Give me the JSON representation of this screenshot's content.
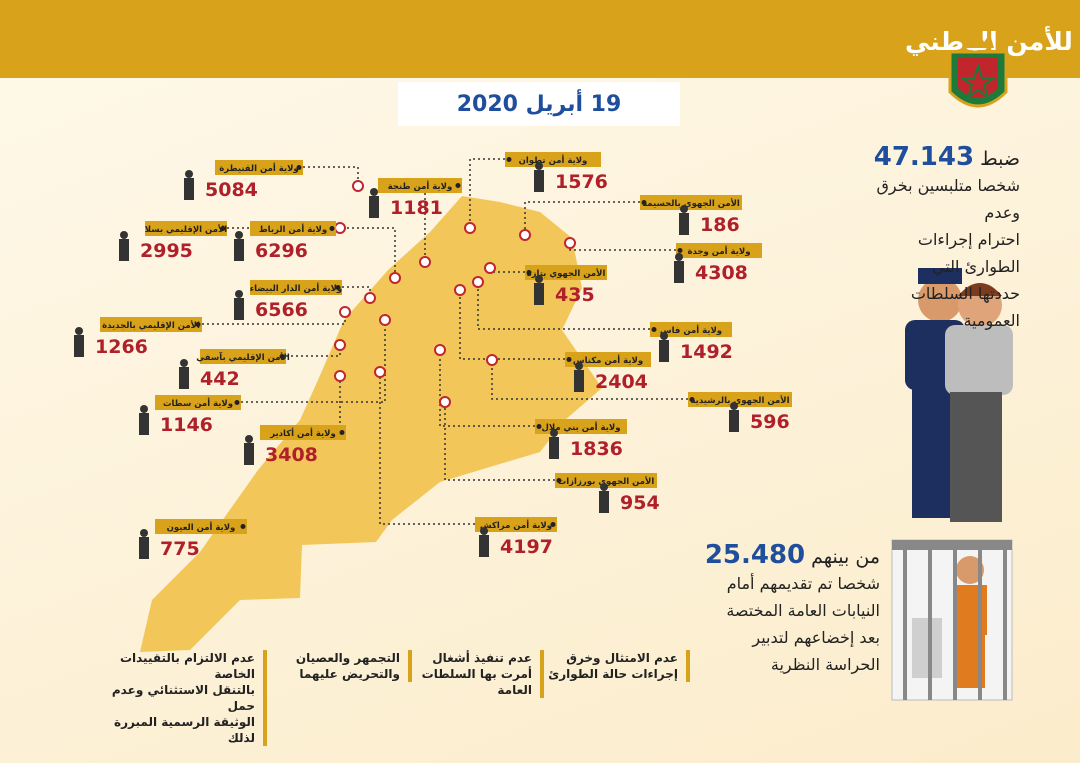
{
  "header": {
    "title": "حصيلة العمليات الأمنية لمختلف مصالح المديرية العامة للأمن الوطني",
    "date": "19 أبريل 2020"
  },
  "regions": [
    {
      "name": "ولاية أمن القنيطرة",
      "value": 5084
    },
    {
      "name": "ولاية أمن طنجة",
      "value": 1181
    },
    {
      "name": "ولاية أمن تطوان",
      "value": 1576
    },
    {
      "name": "الأمن الجهوي بالحسيمة",
      "value": 186
    },
    {
      "name": "الأمن الإقليمي بسلا",
      "value": 2995
    },
    {
      "name": "ولاية أمن الرباط",
      "value": 6296
    },
    {
      "name": "ولاية أمن وجدة",
      "value": 4308
    },
    {
      "name": "الأمن الجهوي بتازة",
      "value": 435
    },
    {
      "name": "ولاية أمن الدار البيضاء",
      "value": 6566
    },
    {
      "name": "الأمن الإقليمي بالجديدة",
      "value": 1266
    },
    {
      "name": "ولاية أمن فاس",
      "value": 1492
    },
    {
      "name": "الأمن الإقليمي بآسفي",
      "value": 442
    },
    {
      "name": "ولاية أمن مكناس",
      "value": 2404
    },
    {
      "name": "ولاية أمن سطات",
      "value": 1146
    },
    {
      "name": "الأمن الجهوي بالرشيدية",
      "value": 596
    },
    {
      "name": "ولاية أمن أكادير",
      "value": 3408
    },
    {
      "name": "ولاية أمن بني ملال",
      "value": 1836
    },
    {
      "name": "الأمن الجهوي بورزازات",
      "value": 954
    },
    {
      "name": "ولاية أمن العيون",
      "value": 775
    },
    {
      "name": "ولاية أمن مراكش",
      "value": 4197
    }
  ],
  "stat1": {
    "prefix": "ضبط",
    "number": "47.143",
    "lines": [
      "شخصا متلبسين بخرق وعدم",
      "احترام إجراءات الطوارئ التي",
      "حددتها السلطات العمومية"
    ]
  },
  "stat2": {
    "prefix": "من بينهم",
    "number": "25.480",
    "lines": [
      "شخصا تم تقديمهم أمام",
      "النيابات العامة المختصة",
      "بعد إخضاعهم لتدبير",
      "الحراسة النظرية"
    ]
  },
  "offenses": [
    [
      "عدم الامتثال وخرق",
      "إجراءات حالة الطوارئ"
    ],
    [
      "عدم تنفيذ أشغال",
      "أمرت بها السلطات",
      "العامة"
    ],
    [
      "التجمهر والعصيان",
      "والتحريض عليهما"
    ],
    [
      "عدم الالتزام بالتقييدات الخاصة",
      "بالتنقل الاستثنائي وعدم حمل",
      "الوثيقة الرسمية المبررة لذلك"
    ]
  ]
}
